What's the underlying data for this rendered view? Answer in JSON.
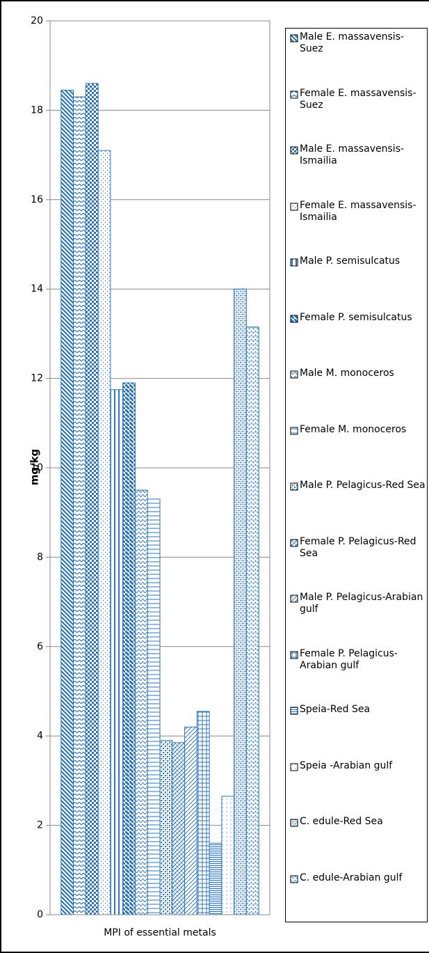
{
  "chart_data": {
    "type": "bar",
    "ylabel": "mg/kg",
    "categories": [
      "MPI of  essential metals"
    ],
    "ylim": [
      0,
      20
    ],
    "yticks": [
      0,
      2,
      4,
      6,
      8,
      10,
      12,
      14,
      16,
      18,
      20
    ],
    "grid": true,
    "series": [
      {
        "name": "Male E. massavensis-Suez",
        "color": "#2e75b6",
        "pattern": "diag-down",
        "values": [
          18.45
        ]
      },
      {
        "name": "Female E. massavensis-Suez",
        "color": "#2e75b6",
        "pattern": "zigzag",
        "values": [
          18.3
        ]
      },
      {
        "name": "Male E. massavensis-Ismailia",
        "color": "#2e75b6",
        "pattern": "checker",
        "values": [
          18.6
        ]
      },
      {
        "name": "Female E. massavensis-Ismailia",
        "color": "#2e75b6",
        "pattern": "dots",
        "values": [
          17.1
        ]
      },
      {
        "name": "Male P. semisulcatus",
        "color": "#2e75b6",
        "pattern": "vertical",
        "values": [
          11.75
        ]
      },
      {
        "name": "Female P. semisulcatus",
        "color": "#2e75b6",
        "pattern": "diag-down-wide",
        "values": [
          11.9
        ]
      },
      {
        "name": "Male M. monoceros",
        "color": "#2e75b6",
        "pattern": "wave",
        "values": [
          9.5
        ]
      },
      {
        "name": "Female M. monoceros",
        "color": "#2e75b6",
        "pattern": "horizontal",
        "values": [
          9.3
        ]
      },
      {
        "name": "Male P. Pelagicus-Red Sea",
        "color": "#2e75b6",
        "pattern": "checker-small",
        "values": [
          3.9
        ]
      },
      {
        "name": "Female P. Pelagicus-Red Sea",
        "color": "#2e75b6",
        "pattern": "cross-diag",
        "values": [
          3.85
        ]
      },
      {
        "name": "Male P. Pelagicus-Arabian gulf",
        "color": "#2e75b6",
        "pattern": "diag-up",
        "values": [
          4.2
        ]
      },
      {
        "name": "Female P. Pelagicus-Arabian gulf",
        "color": "#2e75b6",
        "pattern": "grid",
        "values": [
          4.55
        ]
      },
      {
        "name": "Speia-Red Sea",
        "color": "#2e75b6",
        "pattern": "horizontal-dense",
        "values": [
          1.6
        ]
      },
      {
        "name": "Speia -Arabian gulf",
        "color": "#2e75b6",
        "pattern": "dots-sparse",
        "values": [
          2.65
        ]
      },
      {
        "name": "C. edule-Red Sea",
        "color": "#2e75b6",
        "pattern": "dots-dense",
        "values": [
          14.0
        ]
      },
      {
        "name": "C. edule-Arabian gulf",
        "color": "#2e75b6",
        "pattern": "cross-dots",
        "values": [
          13.15
        ]
      }
    ]
  }
}
